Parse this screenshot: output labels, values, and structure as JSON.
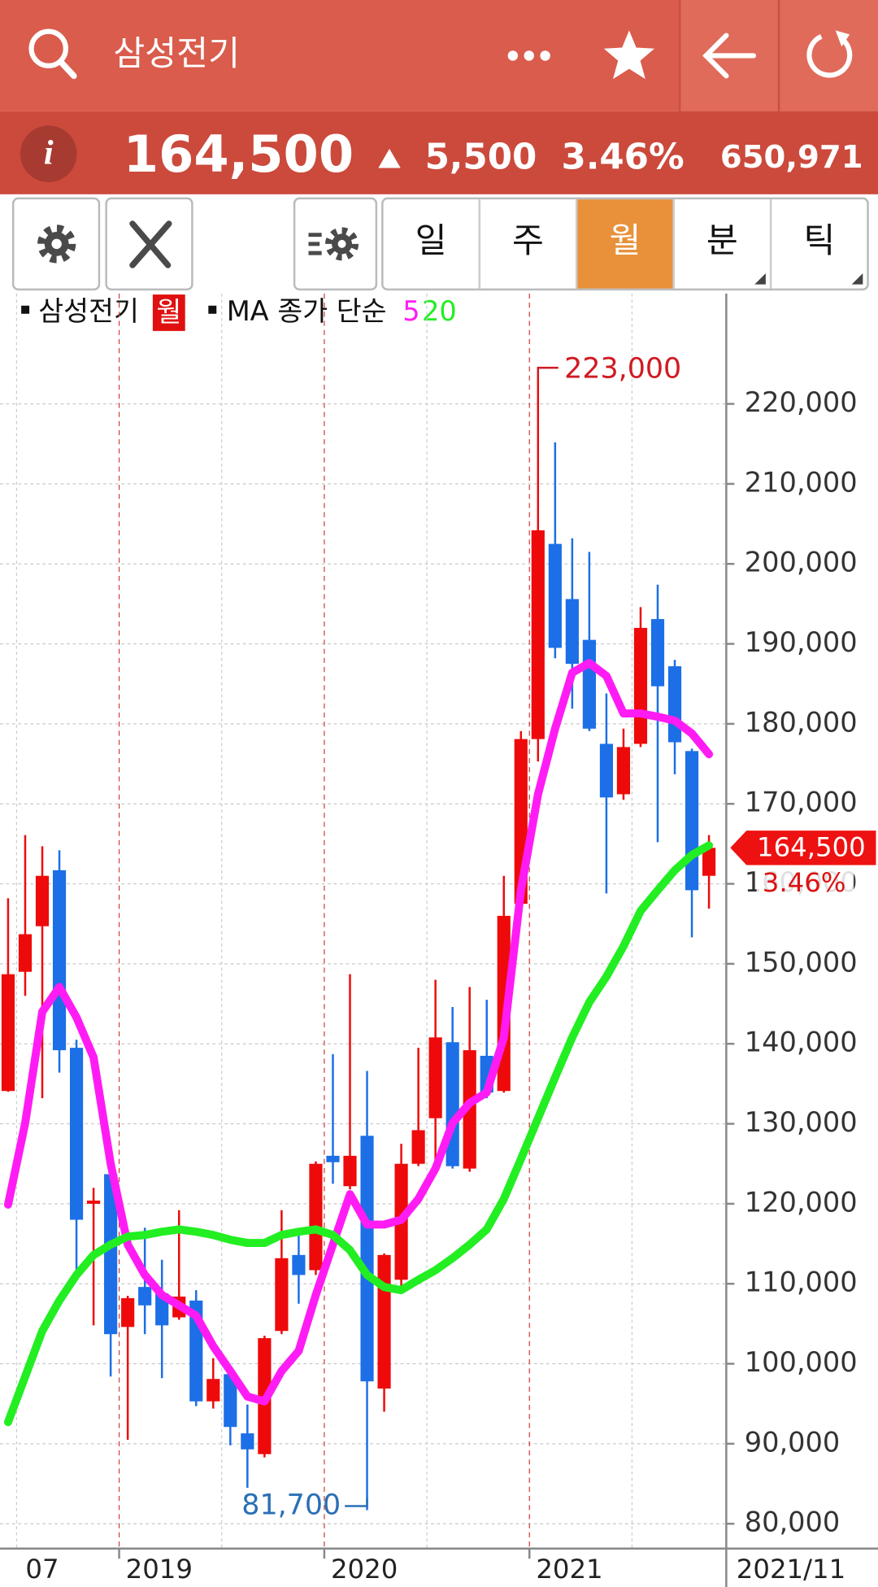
{
  "header": {
    "title": "삼성전기"
  },
  "quote": {
    "price": "164,500",
    "change": "5,500",
    "change_rate": "3.46%",
    "volume": "650,971"
  },
  "toolbar": {
    "periods": [
      "일",
      "주",
      "월",
      "분",
      "틱"
    ],
    "selected": 2
  },
  "chart_data": {
    "type": "candlestick",
    "legend": {
      "symbol": "삼성전기",
      "period": "월",
      "ma_label": "MA 종가 단순"
    },
    "categories": [
      null,
      null,
      "07",
      null,
      null,
      null,
      null,
      "2019",
      null,
      null,
      null,
      null,
      null,
      null,
      null,
      null,
      null,
      null,
      null,
      "2020",
      null,
      null,
      null,
      null,
      null,
      null,
      null,
      null,
      null,
      null,
      null,
      "2021",
      null,
      null,
      null,
      null,
      null,
      null,
      null,
      null,
      null,
      null
    ],
    "x_end_label": "2021/11",
    "open": [
      134100,
      149000,
      154700,
      161700,
      139500,
      120000,
      123700,
      104600,
      109600,
      108800,
      105800,
      107900,
      95300,
      98700,
      91300,
      88700,
      104100,
      113600,
      111700,
      126000,
      122200,
      128500,
      96900,
      110500,
      125000,
      130700,
      140200,
      124400,
      138500,
      134100,
      157500,
      178100,
      202500,
      195600,
      190500,
      177500,
      171200,
      177500,
      193100,
      187200,
      176600,
      161000
    ],
    "high": [
      158200,
      166100,
      164700,
      164200,
      140500,
      122000,
      126000,
      108500,
      117000,
      113000,
      119200,
      109200,
      100700,
      99800,
      94900,
      103500,
      119200,
      116100,
      125300,
      138700,
      148700,
      136600,
      113800,
      127500,
      139500,
      148000,
      144600,
      147100,
      145500,
      161000,
      179100,
      223000,
      215200,
      203200,
      201500,
      183800,
      179400,
      194600,
      197400,
      188000,
      176900,
      166100
    ],
    "low": [
      134000,
      146000,
      133200,
      136400,
      110800,
      104800,
      98400,
      90500,
      103700,
      98200,
      105500,
      94700,
      94400,
      89800,
      84500,
      88300,
      103700,
      107500,
      111100,
      122500,
      121800,
      81700,
      94000,
      109400,
      124700,
      125200,
      124400,
      124000,
      133200,
      133900,
      157300,
      175300,
      188200,
      181900,
      179100,
      158800,
      170500,
      177100,
      165200,
      173700,
      153300,
      156900
    ],
    "close": [
      148700,
      153700,
      161000,
      139200,
      118000,
      120400,
      103700,
      108200,
      107300,
      104800,
      108400,
      95300,
      98100,
      92100,
      89300,
      103200,
      113200,
      111100,
      125000,
      125200,
      126000,
      97800,
      113600,
      125000,
      129200,
      140800,
      124700,
      139200,
      133900,
      156000,
      178100,
      204200,
      189500,
      187500,
      179400,
      170800,
      177100,
      192000,
      184700,
      177700,
      159200,
      164500
    ],
    "up_color": "#ee0a0a",
    "down_color": "#1c6fe6",
    "series": [
      {
        "name": "5",
        "color": "#ff1cf4",
        "values": [
          119900,
          130100,
          144000,
          147100,
          143300,
          138300,
          125000,
          114900,
          111100,
          108600,
          107300,
          106000,
          102200,
          99100,
          95900,
          95300,
          99100,
          101600,
          108600,
          114900,
          121200,
          117400,
          117400,
          118000,
          120600,
          124400,
          130100,
          132600,
          133900,
          140800,
          159200,
          171200,
          179400,
          186400,
          187600,
          186000,
          181300,
          181300,
          180900,
          180400,
          178800,
          176200
        ]
      },
      {
        "name": "20",
        "color": "#22ee22",
        "values": [
          92700,
          98400,
          104100,
          107900,
          111100,
          113600,
          114900,
          115900,
          116100,
          116500,
          116800,
          116500,
          116100,
          115500,
          115100,
          115100,
          116100,
          116500,
          116800,
          116100,
          114200,
          111100,
          109600,
          109200,
          110500,
          111700,
          113200,
          114900,
          116800,
          120600,
          125600,
          130700,
          135800,
          140800,
          145200,
          148400,
          152200,
          156600,
          159200,
          161700,
          163600,
          164800
        ]
      }
    ],
    "ylim": [
      76900,
      233800
    ],
    "yticks": [
      {
        "value": 80000,
        "label": "80,000"
      },
      {
        "value": 90000,
        "label": "90,000"
      },
      {
        "value": 100000,
        "label": "100,000"
      },
      {
        "value": 110000,
        "label": "110,000"
      },
      {
        "value": 120000,
        "label": "120,000"
      },
      {
        "value": 130000,
        "label": "130,000"
      },
      {
        "value": 140000,
        "label": "140,000"
      },
      {
        "value": 150000,
        "label": "150,000"
      },
      {
        "value": 160000,
        "label": "160,000"
      },
      {
        "value": 170000,
        "label": "170,000"
      },
      {
        "value": 180000,
        "label": "180,000"
      },
      {
        "value": 190000,
        "label": "190,000"
      },
      {
        "value": 200000,
        "label": "200,000"
      },
      {
        "value": 210000,
        "label": "210,000"
      },
      {
        "value": 220000,
        "label": "220,000"
      }
    ],
    "grid": true,
    "annotations": [
      {
        "value": 223000,
        "label": "223,000",
        "color": "#d01a22"
      },
      {
        "value": 81700,
        "label": "81,700",
        "color": "#2a6fb5"
      }
    ],
    "last_price": {
      "value": 164500,
      "label": "164,500"
    },
    "last_change_label": "3.46%"
  }
}
